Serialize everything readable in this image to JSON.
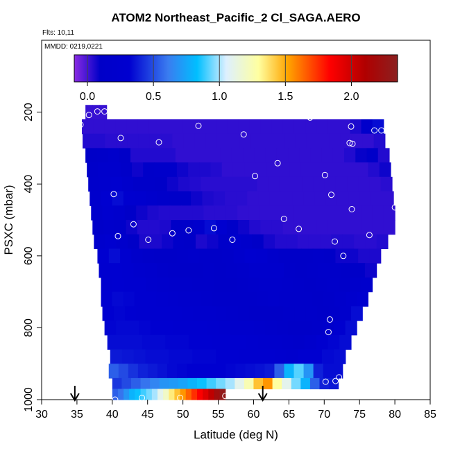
{
  "title": "ATOM2 Northeast_Pacific_2 Cl_SAGA.AERO",
  "flights_label": "Flts: 10,11",
  "mmdd_label": "MMDD: 0219,0221",
  "chart_data": {
    "type": "heatmap",
    "xlabel": "Latitude (deg N)",
    "ylabel": "PSXC (mbar)",
    "xlim": [
      30,
      85
    ],
    "ylim": [
      1000,
      0
    ],
    "x_ticks": [
      30,
      35,
      40,
      45,
      50,
      55,
      60,
      65,
      70,
      75,
      80,
      85
    ],
    "y_ticks": [
      200,
      400,
      600,
      800,
      1000
    ],
    "colorbar": {
      "ticks": [
        0.0,
        0.5,
        1.0,
        1.5,
        2.0
      ],
      "tick_labels": [
        "0.0",
        "0.5",
        "1.0",
        "1.5",
        "2.0"
      ],
      "range": [
        -0.1,
        2.35
      ],
      "colors": [
        "#8a2be2",
        "#0000c8",
        "#3a7cf0",
        "#00bfff",
        "#ddf0ff",
        "#ffffa0",
        "#ffa500",
        "#ff0000",
        "#b00000",
        "#8b2020"
      ]
    },
    "pressure_bands": [
      {
        "p": [
          180,
          220
        ],
        "lat": [
          36.2,
          39.2
        ],
        "values": [
          0.02,
          0.02,
          0.02
        ]
      },
      {
        "p": [
          220,
          260
        ],
        "lat": [
          35.7,
          78.4
        ],
        "values": [
          0.03,
          0.03,
          0.03,
          0.03,
          0.03,
          0.03,
          0.03,
          0.03,
          0.03,
          0.03,
          0.03,
          0.03,
          0.03,
          0.03,
          0.03,
          0.03,
          0.03,
          0.03,
          0.03,
          0.03,
          0.03,
          0.03,
          0.03,
          0.03,
          0.06,
          0.18,
          0.35
        ]
      },
      {
        "p": [
          260,
          300
        ],
        "lat": [
          35.8,
          78.6
        ],
        "values": [
          0.05,
          0.05,
          0.04,
          0.04,
          0.04,
          0.04,
          0.04,
          0.04,
          0.03,
          0.03,
          0.03,
          0.03,
          0.03,
          0.03,
          0.03,
          0.03,
          0.03,
          0.03,
          0.03,
          0.03,
          0.03,
          0.03,
          0.03,
          0.03,
          0.03,
          0.03,
          0.05
        ]
      },
      {
        "p": [
          300,
          340
        ],
        "lat": [
          36.2,
          79.2
        ],
        "values": [
          0.1,
          0.14,
          0.18,
          0.1,
          0.05,
          0.05,
          0.05,
          0.05,
          0.03,
          0.03,
          0.03,
          0.03,
          0.03,
          0.03,
          0.03,
          0.03,
          0.03,
          0.03,
          0.03,
          0.03,
          0.03,
          0.03,
          0.03,
          0.05,
          0.09,
          0.14,
          0.05
        ]
      },
      {
        "p": [
          340,
          380
        ],
        "lat": [
          36.4,
          79.4
        ],
        "values": [
          0.15,
          0.22,
          0.2,
          0.12,
          0.08,
          0.12,
          0.15,
          0.15,
          0.08,
          0.06,
          0.06,
          0.05,
          0.03,
          0.03,
          0.03,
          0.03,
          0.03,
          0.03,
          0.03,
          0.03,
          0.03,
          0.03,
          0.03,
          0.03,
          0.03,
          0.05,
          0.08
        ]
      },
      {
        "p": [
          380,
          420
        ],
        "lat": [
          36.6,
          79.6
        ],
        "values": [
          0.18,
          0.25,
          0.3,
          0.22,
          0.14,
          0.12,
          0.1,
          0.08,
          0.06,
          0.05,
          0.04,
          0.04,
          0.04,
          0.04,
          0.04,
          0.03,
          0.03,
          0.03,
          0.03,
          0.03,
          0.03,
          0.03,
          0.03,
          0.03,
          0.03,
          0.03,
          0.04
        ]
      },
      {
        "p": [
          420,
          460
        ],
        "lat": [
          36.8,
          79.8
        ],
        "values": [
          0.22,
          0.32,
          0.35,
          0.3,
          0.26,
          0.22,
          0.16,
          0.12,
          0.1,
          0.08,
          0.06,
          0.05,
          0.04,
          0.04,
          0.03,
          0.03,
          0.03,
          0.03,
          0.03,
          0.03,
          0.03,
          0.03,
          0.03,
          0.03,
          0.03,
          0.03,
          0.03
        ]
      },
      {
        "p": [
          460,
          500
        ],
        "lat": [
          37.0,
          80.0
        ],
        "values": [
          0.2,
          0.28,
          0.25,
          0.12,
          0.08,
          0.06,
          0.05,
          0.05,
          0.05,
          0.05,
          0.04,
          0.04,
          0.04,
          0.03,
          0.03,
          0.03,
          0.03,
          0.03,
          0.03,
          0.03,
          0.03,
          0.03,
          0.03,
          0.03,
          0.03,
          0.03,
          0.03
        ]
      },
      {
        "p": [
          500,
          540
        ],
        "lat": [
          37.2,
          80.0
        ],
        "values": [
          0.12,
          0.18,
          0.15,
          0.08,
          0.05,
          0.05,
          0.06,
          0.1,
          0.14,
          0.2,
          0.35,
          0.28,
          0.12,
          0.08,
          0.05,
          0.04,
          0.04,
          0.03,
          0.03,
          0.03,
          0.03,
          0.03,
          0.03,
          0.03,
          0.03,
          0.03,
          0.03
        ]
      },
      {
        "p": [
          540,
          580
        ],
        "lat": [
          37.4,
          79.0
        ],
        "values": [
          0.25,
          0.3,
          0.2,
          0.1,
          0.06,
          0.06,
          0.08,
          0.12,
          0.1,
          0.06,
          0.08,
          0.16,
          0.25,
          0.18,
          0.1,
          0.07,
          0.05,
          0.05,
          0.04,
          0.04,
          0.04,
          0.05,
          0.05,
          0.04,
          0.04,
          0.05
        ]
      },
      {
        "p": [
          580,
          620
        ],
        "lat": [
          37.9,
          78.0
        ],
        "values": [
          0.32,
          0.35,
          0.28,
          0.18,
          0.12,
          0.1,
          0.1,
          0.12,
          0.15,
          0.12,
          0.1,
          0.12,
          0.2,
          0.3,
          0.26,
          0.18,
          0.12,
          0.1,
          0.1,
          0.12,
          0.1,
          0.08,
          0.08,
          0.06,
          0.06
        ]
      },
      {
        "p": [
          620,
          660
        ],
        "lat": [
          38.1,
          77.4
        ],
        "values": [
          0.3,
          0.32,
          0.3,
          0.25,
          0.2,
          0.15,
          0.12,
          0.1,
          0.1,
          0.12,
          0.1,
          0.12,
          0.15,
          0.2,
          0.22,
          0.2,
          0.14,
          0.1,
          0.12,
          0.15,
          0.12,
          0.1,
          0.1,
          0.08
        ]
      },
      {
        "p": [
          660,
          700
        ],
        "lat": [
          38.4,
          76.8
        ],
        "values": [
          0.3,
          0.32,
          0.3,
          0.28,
          0.25,
          0.2,
          0.18,
          0.15,
          0.12,
          0.12,
          0.1,
          0.1,
          0.12,
          0.15,
          0.18,
          0.18,
          0.15,
          0.12,
          0.1,
          0.12,
          0.15,
          0.14,
          0.18,
          0.22
        ]
      },
      {
        "p": [
          700,
          740
        ],
        "lat": [
          38.4,
          76.2
        ],
        "values": [
          0.32,
          0.34,
          0.33,
          0.3,
          0.28,
          0.26,
          0.24,
          0.2,
          0.18,
          0.16,
          0.14,
          0.12,
          0.12,
          0.14,
          0.16,
          0.18,
          0.16,
          0.14,
          0.12,
          0.1,
          0.12,
          0.18,
          0.25,
          0.3
        ]
      },
      {
        "p": [
          740,
          780
        ],
        "lat": [
          38.6,
          75.4
        ],
        "values": [
          0.32,
          0.33,
          0.32,
          0.3,
          0.3,
          0.28,
          0.26,
          0.24,
          0.22,
          0.2,
          0.18,
          0.15,
          0.12,
          0.1,
          0.1,
          0.1,
          0.12,
          0.14,
          0.12,
          0.1,
          0.12,
          0.2,
          0.35
        ]
      },
      {
        "p": [
          780,
          820
        ],
        "lat": [
          38.9,
          74.6
        ],
        "values": [
          0.33,
          0.34,
          0.34,
          0.33,
          0.32,
          0.32,
          0.3,
          0.28,
          0.28,
          0.26,
          0.24,
          0.22,
          0.2,
          0.18,
          0.15,
          0.12,
          0.1,
          0.1,
          0.12,
          0.18,
          0.3,
          0.35
        ]
      },
      {
        "p": [
          820,
          860
        ],
        "lat": [
          39.3,
          73.8
        ],
        "values": [
          0.35,
          0.35,
          0.35,
          0.34,
          0.34,
          0.33,
          0.33,
          0.32,
          0.32,
          0.3,
          0.3,
          0.28,
          0.26,
          0.24,
          0.2,
          0.18,
          0.16,
          0.2,
          0.28,
          0.33,
          0.35
        ]
      },
      {
        "p": [
          860,
          900
        ],
        "lat": [
          39.7,
          73.0
        ],
        "values": [
          0.38,
          0.37,
          0.36,
          0.35,
          0.35,
          0.34,
          0.34,
          0.33,
          0.33,
          0.32,
          0.32,
          0.3,
          0.3,
          0.28,
          0.26,
          0.25,
          0.28,
          0.32,
          0.34,
          0.35
        ]
      },
      {
        "p": [
          900,
          940
        ],
        "lat": [
          39.5,
          72.6
        ],
        "values": [
          0.55,
          0.5,
          0.44,
          0.4,
          0.38,
          0.36,
          0.34,
          0.33,
          0.32,
          0.32,
          0.32,
          0.32,
          0.33,
          0.34,
          0.35,
          0.36,
          0.38,
          0.55,
          0.8,
          0.92,
          0.7,
          0.4,
          0.35,
          0.35
        ]
      },
      {
        "p": [
          940,
          970
        ],
        "lat": [
          40.0,
          72.0
        ],
        "values": [
          0.45,
          0.5,
          0.55,
          0.6,
          0.65,
          0.7,
          0.72,
          0.75,
          0.8,
          0.85,
          0.9,
          0.95,
          1.0,
          1.1,
          1.25,
          1.45,
          1.55,
          1.3,
          1.1,
          0.95,
          0.8,
          0.55,
          0.4,
          0.38
        ]
      },
      {
        "p": [
          970,
          1000
        ],
        "lat": [
          40.0,
          56.0
        ],
        "values": [
          0.55,
          0.6,
          0.7,
          0.8,
          0.85,
          0.9,
          0.95,
          1.0,
          1.1,
          1.2,
          1.35,
          1.45,
          1.55,
          1.65,
          1.75,
          1.85,
          1.95,
          2.05,
          2.2,
          2.3
        ]
      }
    ],
    "samples": [
      {
        "lat": 35.5,
        "p": 235
      },
      {
        "lat": 36.7,
        "p": 208
      },
      {
        "lat": 37.9,
        "p": 198
      },
      {
        "lat": 38.9,
        "p": 198
      },
      {
        "lat": 41.2,
        "p": 272
      },
      {
        "lat": 46.6,
        "p": 284
      },
      {
        "lat": 52.2,
        "p": 238
      },
      {
        "lat": 58.6,
        "p": 262
      },
      {
        "lat": 68.0,
        "p": 215
      },
      {
        "lat": 73.6,
        "p": 286
      },
      {
        "lat": 74.0,
        "p": 288
      },
      {
        "lat": 73.8,
        "p": 240
      },
      {
        "lat": 77.1,
        "p": 251
      },
      {
        "lat": 78.1,
        "p": 251
      },
      {
        "lat": 63.4,
        "p": 342
      },
      {
        "lat": 60.2,
        "p": 378
      },
      {
        "lat": 70.1,
        "p": 375
      },
      {
        "lat": 40.2,
        "p": 428
      },
      {
        "lat": 71.0,
        "p": 430
      },
      {
        "lat": 73.9,
        "p": 470
      },
      {
        "lat": 80.0,
        "p": 465
      },
      {
        "lat": 43.0,
        "p": 512
      },
      {
        "lat": 64.3,
        "p": 497
      },
      {
        "lat": 66.4,
        "p": 525
      },
      {
        "lat": 40.8,
        "p": 545
      },
      {
        "lat": 45.1,
        "p": 555
      },
      {
        "lat": 48.5,
        "p": 537
      },
      {
        "lat": 50.8,
        "p": 529
      },
      {
        "lat": 54.4,
        "p": 523
      },
      {
        "lat": 57.0,
        "p": 555
      },
      {
        "lat": 71.5,
        "p": 560
      },
      {
        "lat": 76.4,
        "p": 542
      },
      {
        "lat": 72.7,
        "p": 600
      },
      {
        "lat": 70.8,
        "p": 777
      },
      {
        "lat": 70.6,
        "p": 812
      },
      {
        "lat": 70.2,
        "p": 950
      },
      {
        "lat": 71.6,
        "p": 948
      },
      {
        "lat": 72.1,
        "p": 938
      },
      {
        "lat": 40.4,
        "p": 1000
      },
      {
        "lat": 44.2,
        "p": 995
      },
      {
        "lat": 49.6,
        "p": 995
      },
      {
        "lat": 56.0,
        "p": 990
      }
    ],
    "arrows_lat": [
      34.7,
      61.3
    ]
  }
}
